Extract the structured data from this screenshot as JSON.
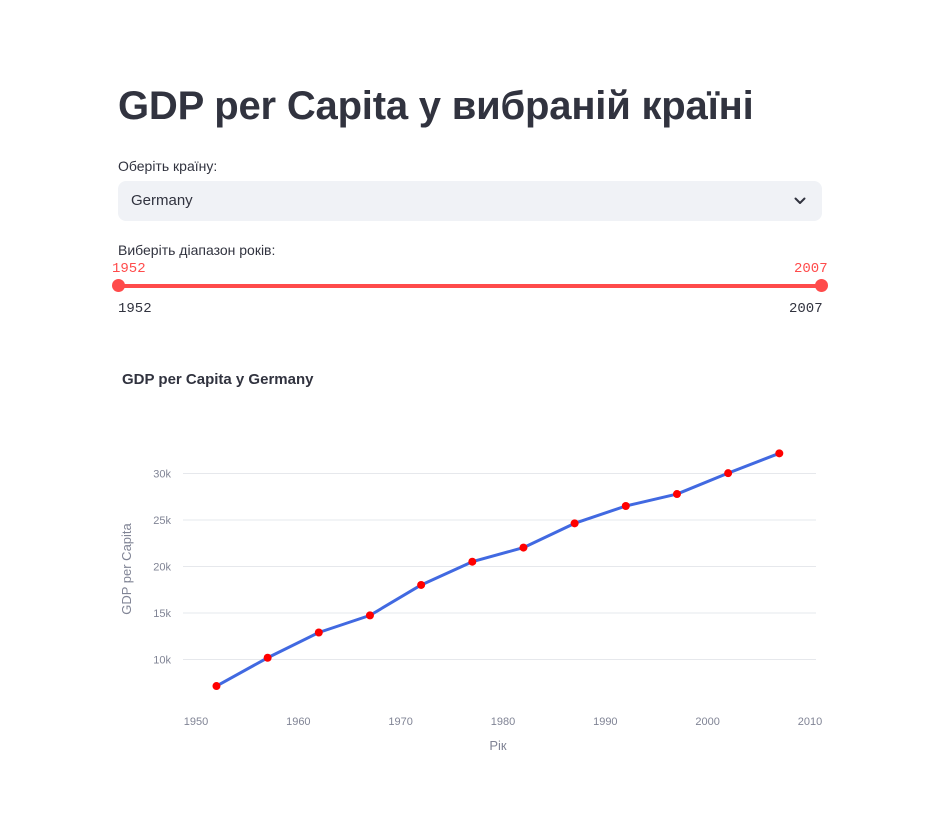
{
  "page": {
    "title": "GDP per Capita у вибраній країні"
  },
  "country_select": {
    "label": "Оберіть країну:",
    "value": "Germany"
  },
  "year_slider": {
    "label": "Виберіть діапазон років:",
    "min": "1952",
    "max": "2007",
    "selected_start": "1952",
    "selected_end": "2007",
    "accent_color": "#ff4b4b"
  },
  "chart": {
    "title": "GDP per Capita у Germany"
  },
  "chart_data": {
    "type": "line",
    "title": "GDP per Capita у Germany",
    "xlabel": "Рік",
    "ylabel": "GDP per Capita",
    "x": [
      1952,
      1957,
      1962,
      1967,
      1972,
      1977,
      1982,
      1987,
      1992,
      1997,
      2002,
      2007
    ],
    "series": [
      {
        "values": [
          7144,
          10188,
          12902,
          14746,
          18016,
          20513,
          22032,
          24639,
          26505,
          27789,
          30036,
          32170
        ]
      }
    ],
    "xlim": [
      1948,
      2010
    ],
    "ylim": [
      5000,
      35000
    ],
    "x_ticks": [
      1950,
      1960,
      1970,
      1980,
      1990,
      2000,
      2010
    ],
    "x_tick_labels": [
      "1950",
      "1960",
      "1970",
      "1980",
      "1990",
      "2000",
      "2010"
    ],
    "y_ticks": [
      10000,
      15000,
      20000,
      25000,
      30000
    ],
    "y_tick_labels": [
      "10k",
      "15k",
      "20k",
      "25k",
      "30k"
    ],
    "grid": true,
    "line_color": "#4169e1",
    "marker_color": "#ff0000"
  }
}
